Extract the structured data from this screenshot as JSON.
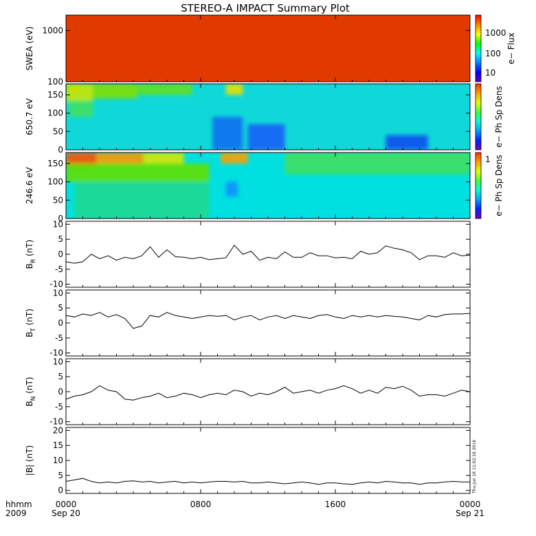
{
  "title": "STEREO-A IMPACT Summary Plot",
  "timestamp": "Thu Jun 16 11:02:16 2016",
  "x_axis": {
    "corner_top": "hhmm",
    "corner_bottom": "2009",
    "ticks": [
      {
        "label": "0000",
        "date": "Sep 20",
        "hour": 0
      },
      {
        "label": "0800",
        "date": "",
        "hour": 8
      },
      {
        "label": "1600",
        "date": "",
        "hour": 16
      },
      {
        "label": "0000",
        "date": "Sep 21",
        "hour": 24
      }
    ]
  },
  "colorbars": [
    {
      "label": "e− Flux",
      "ticks": [
        "1000",
        "100",
        "10"
      ]
    },
    {
      "label": "e− Ph Sp Dens",
      "ticks": []
    },
    {
      "label": "e− Ph Sp Dens",
      "ticks": [
        "1"
      ]
    }
  ],
  "chart_data": [
    {
      "type": "heatmap",
      "ylabel": "SWEA (eV)",
      "yscale": "log",
      "ytick_labels": [
        "1000",
        "100"
      ],
      "yticks": [
        1000,
        100
      ],
      "ylim": [
        100,
        2000
      ],
      "xlim": [
        0,
        24
      ],
      "color_profile": [
        {
          "energy_ev": 100,
          "color": "#e03a00"
        },
        {
          "energy_ev": 120,
          "color": "#ff4000"
        },
        {
          "energy_ev": 160,
          "color": "#ff8000"
        },
        {
          "energy_ev": 210,
          "color": "#ffc000"
        },
        {
          "energy_ev": 270,
          "color": "#f8f000"
        },
        {
          "energy_ev": 350,
          "color": "#b4f000"
        },
        {
          "energy_ev": 470,
          "color": "#40e000"
        },
        {
          "energy_ev": 600,
          "color": "#00e8a0"
        },
        {
          "energy_ev": 800,
          "color": "#00c8ff"
        },
        {
          "energy_ev": 1100,
          "color": "#0060ff"
        },
        {
          "energy_ev": 1500,
          "color": "#2020f0"
        },
        {
          "energy_ev": 2000,
          "color": "#4000d0"
        }
      ]
    },
    {
      "type": "heatmap",
      "ylabel": "650.7 eV",
      "yticks": [
        0,
        50,
        100,
        150
      ],
      "ylim": [
        0,
        180
      ],
      "xlim": [
        0,
        24
      ],
      "baseline_color": "#10d8d8",
      "features": [
        {
          "t0": 0.0,
          "t1": 0.8,
          "p0": 160,
          "p1": 180,
          "color": "#ff8800"
        },
        {
          "t0": 0.0,
          "t1": 1.6,
          "p0": 130,
          "p1": 180,
          "color": "#c8e800"
        },
        {
          "t0": 0.2,
          "t1": 1.6,
          "p0": 90,
          "p1": 135,
          "color": "#40e060"
        },
        {
          "t0": 1.6,
          "t1": 4.2,
          "p0": 140,
          "p1": 180,
          "color": "#80e000"
        },
        {
          "t0": 4.2,
          "t1": 7.5,
          "p0": 150,
          "p1": 180,
          "color": "#60e020"
        },
        {
          "t0": 9.5,
          "t1": 10.5,
          "p0": 150,
          "p1": 180,
          "color": "#e8e000"
        },
        {
          "t0": 8.7,
          "t1": 10.5,
          "p0": 0,
          "p1": 90,
          "color": "#1070f0"
        },
        {
          "t0": 10.8,
          "t1": 13.0,
          "p0": 0,
          "p1": 70,
          "color": "#1860f8"
        },
        {
          "t0": 19.0,
          "t1": 21.5,
          "p0": 0,
          "p1": 40,
          "color": "#1050f0"
        }
      ]
    },
    {
      "type": "heatmap",
      "ylabel": "246.6 eV",
      "yticks": [
        0,
        50,
        100,
        150
      ],
      "ylim": [
        0,
        180
      ],
      "xlim": [
        0,
        24
      ],
      "baseline_color": "#00e0e0",
      "features": [
        {
          "t0": 0.0,
          "t1": 1.8,
          "p0": 140,
          "p1": 180,
          "color": "#ff5000"
        },
        {
          "t0": 1.8,
          "t1": 4.6,
          "p0": 150,
          "p1": 180,
          "color": "#ff9800"
        },
        {
          "t0": 4.6,
          "t1": 7.0,
          "p0": 150,
          "p1": 180,
          "color": "#d8e800"
        },
        {
          "t0": 9.2,
          "t1": 10.8,
          "p0": 150,
          "p1": 180,
          "color": "#ffa000"
        },
        {
          "t0": 0.0,
          "t1": 8.5,
          "p0": 100,
          "p1": 150,
          "color": "#60e000"
        },
        {
          "t0": 0.5,
          "t1": 8.5,
          "p0": 0,
          "p1": 100,
          "color": "#20d890"
        },
        {
          "t0": 9.5,
          "t1": 10.2,
          "p0": 60,
          "p1": 100,
          "color": "#1090ff"
        },
        {
          "t0": 13.0,
          "t1": 24.0,
          "p0": 120,
          "p1": 180,
          "color": "#40e060"
        }
      ]
    },
    {
      "type": "line",
      "ylabel": "B",
      "ylabel_sub": "R",
      "ylabel_unit": " (nT)",
      "yticks": [
        10,
        5,
        0,
        -5,
        -10
      ],
      "ylim": [
        -11,
        11
      ],
      "xlim": [
        0,
        24
      ],
      "x": [
        0,
        0.5,
        1.0,
        1.5,
        2.0,
        2.5,
        3.0,
        3.5,
        4.0,
        4.5,
        5.0,
        5.5,
        6.0,
        6.5,
        7.0,
        7.5,
        8.0,
        8.5,
        9.0,
        9.5,
        10.0,
        10.5,
        11.0,
        11.5,
        12.0,
        12.5,
        13.0,
        13.5,
        14.0,
        14.5,
        15.0,
        15.5,
        16.0,
        16.5,
        17.0,
        17.5,
        18.0,
        18.5,
        19.0,
        19.5,
        20.0,
        20.5,
        21.0,
        21.5,
        22.0,
        22.5,
        23.0,
        23.5,
        24.0
      ],
      "y": [
        -2.5,
        -3.0,
        -2.5,
        0.0,
        -1.5,
        -0.5,
        -2.0,
        -1.0,
        -1.5,
        -0.5,
        2.5,
        -1.0,
        1.5,
        -0.8,
        -1.0,
        -1.5,
        -1.0,
        -1.8,
        -1.5,
        -1.2,
        3.0,
        0.0,
        1.0,
        -2.0,
        -1.0,
        -1.5,
        0.8,
        -1.0,
        -1.0,
        0.5,
        -0.5,
        -0.5,
        -1.2,
        -1.0,
        -1.5,
        1.0,
        0.0,
        0.5,
        2.8,
        2.0,
        1.5,
        0.5,
        -1.8,
        -0.5,
        -0.5,
        -1.0,
        0.5,
        -0.5,
        -0.3
      ]
    },
    {
      "type": "line",
      "ylabel": "B",
      "ylabel_sub": "T",
      "ylabel_unit": " (nT)",
      "yticks": [
        10,
        5,
        0,
        -5,
        -10
      ],
      "ylim": [
        -11,
        11
      ],
      "xlim": [
        0,
        24
      ],
      "x": [
        0,
        0.5,
        1.0,
        1.5,
        2.0,
        2.5,
        3.0,
        3.5,
        4.0,
        4.5,
        5.0,
        5.5,
        6.0,
        6.5,
        7.0,
        7.5,
        8.0,
        8.5,
        9.0,
        9.5,
        10.0,
        10.5,
        11.0,
        11.5,
        12.0,
        12.5,
        13.0,
        13.5,
        14.0,
        14.5,
        15.0,
        15.5,
        16.0,
        16.5,
        17.0,
        17.5,
        18.0,
        18.5,
        19.0,
        19.5,
        20.0,
        20.5,
        21.0,
        21.5,
        22.0,
        22.5,
        23.0,
        23.5,
        24.0
      ],
      "y": [
        2.5,
        2.0,
        3.0,
        2.5,
        3.5,
        2.0,
        2.8,
        1.5,
        -1.8,
        -1.0,
        2.5,
        2.0,
        3.5,
        2.5,
        2.0,
        1.5,
        2.0,
        2.5,
        2.2,
        2.5,
        1.0,
        2.0,
        2.5,
        1.0,
        2.0,
        2.5,
        1.5,
        2.5,
        2.0,
        1.5,
        2.5,
        2.8,
        2.0,
        1.5,
        2.5,
        2.0,
        2.5,
        2.0,
        2.5,
        2.2,
        2.0,
        1.5,
        1.0,
        2.5,
        2.0,
        2.8,
        3.0,
        3.0,
        3.2
      ]
    },
    {
      "type": "line",
      "ylabel": "B",
      "ylabel_sub": "N",
      "ylabel_unit": " (nT)",
      "yticks": [
        10,
        5,
        0,
        -5,
        -10
      ],
      "ylim": [
        -11,
        11
      ],
      "xlim": [
        0,
        24
      ],
      "x": [
        0,
        0.5,
        1.0,
        1.5,
        2.0,
        2.5,
        3.0,
        3.5,
        4.0,
        4.5,
        5.0,
        5.5,
        6.0,
        6.5,
        7.0,
        7.5,
        8.0,
        8.5,
        9.0,
        9.5,
        10.0,
        10.5,
        11.0,
        11.5,
        12.0,
        12.5,
        13.0,
        13.5,
        14.0,
        14.5,
        15.0,
        15.5,
        16.0,
        16.5,
        17.0,
        17.5,
        18.0,
        18.5,
        19.0,
        19.5,
        20.0,
        20.5,
        21.0,
        21.5,
        22.0,
        22.5,
        23.0,
        23.5,
        24.0
      ],
      "y": [
        -2.5,
        -1.5,
        -1.0,
        0.0,
        2.0,
        0.5,
        0.0,
        -2.5,
        -2.8,
        -2.0,
        -1.5,
        -0.5,
        -2.0,
        -1.5,
        -0.5,
        -1.0,
        -2.0,
        -1.0,
        -0.5,
        -1.0,
        0.5,
        0.0,
        -1.5,
        -0.5,
        -1.0,
        0.0,
        1.5,
        -0.5,
        0.0,
        0.5,
        -0.5,
        0.5,
        1.0,
        2.0,
        1.0,
        -0.5,
        0.5,
        -0.5,
        1.5,
        1.0,
        1.8,
        0.5,
        -1.5,
        -1.0,
        -1.0,
        -1.5,
        -0.5,
        0.5,
        0.0
      ]
    },
    {
      "type": "line",
      "ylabel": "|B| (nT)",
      "yticks": [
        20,
        15,
        10,
        5,
        0
      ],
      "ylim": [
        -1,
        21
      ],
      "xlim": [
        0,
        24
      ],
      "x": [
        0,
        0.5,
        1.0,
        1.5,
        2.0,
        2.5,
        3.0,
        3.5,
        4.0,
        4.5,
        5.0,
        5.5,
        6.0,
        6.5,
        7.0,
        7.5,
        8.0,
        8.5,
        9.0,
        9.5,
        10.0,
        10.5,
        11.0,
        11.5,
        12.0,
        12.5,
        13.0,
        13.5,
        14.0,
        14.5,
        15.0,
        15.5,
        16.0,
        16.5,
        17.0,
        17.5,
        18.0,
        18.5,
        19.0,
        19.5,
        20.0,
        20.5,
        21.0,
        21.5,
        22.0,
        22.5,
        23.0,
        23.5,
        24.0
      ],
      "y": [
        3.0,
        3.5,
        4.0,
        3.0,
        2.5,
        2.8,
        2.5,
        3.0,
        3.2,
        2.8,
        3.0,
        2.5,
        2.8,
        3.0,
        2.5,
        2.8,
        2.5,
        2.8,
        3.0,
        3.0,
        2.8,
        3.0,
        2.5,
        2.5,
        2.8,
        2.5,
        2.2,
        2.5,
        2.8,
        2.5,
        2.0,
        2.5,
        2.5,
        2.2,
        2.0,
        2.5,
        2.8,
        2.5,
        3.0,
        2.8,
        2.5,
        2.5,
        2.0,
        2.5,
        2.5,
        2.8,
        3.0,
        2.8,
        2.8
      ]
    }
  ]
}
